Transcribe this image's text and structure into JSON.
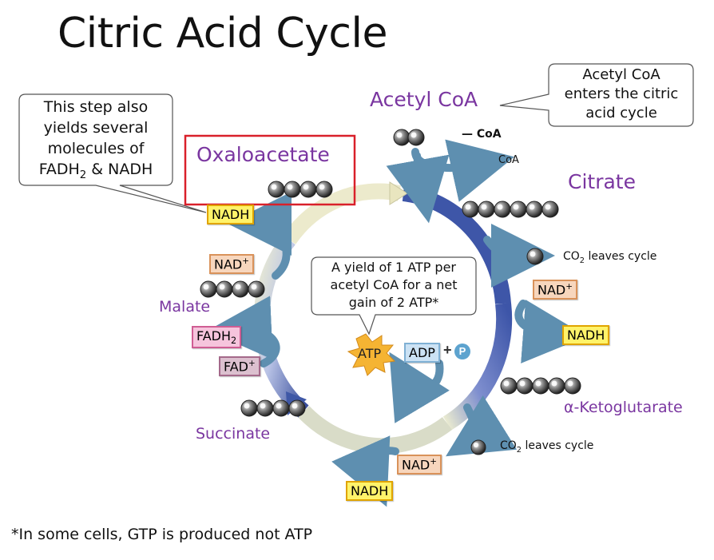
{
  "title": "Citric Acid Cycle",
  "labels": {
    "acetyl_coa": "Acetyl CoA",
    "oxaloacetate": "Oxaloacetate",
    "citrate": "Citrate",
    "malate": "Malate",
    "succinate": "Succinate",
    "alpha_ketoglutarate": "α-Ketoglutarate",
    "coa_small": "CoA",
    "coa_molecule": "— CoA"
  },
  "co2": {
    "prefix": "CO",
    "sub": "2",
    "suffix": " leaves cycle"
  },
  "callouts": {
    "acetyl": [
      "Acetyl CoA",
      "enters the citric",
      "acid cycle"
    ],
    "fadh_line1": "This step also",
    "fadh_line2": "yields several",
    "fadh_line3": "molecules of",
    "fadh_line4_a": "FADH",
    "fadh_line4_sub": "2",
    "fadh_line4_b": " & NADH",
    "atp": [
      "A yield of 1 ATP per",
      "acetyl CoA for a net",
      "gain of 2 ATP*"
    ]
  },
  "boxes": {
    "nadh": "NADH",
    "nad": "NAD",
    "nad_sup": "+",
    "fadh": "FADH",
    "fadh_sub": "2",
    "fad": "FAD",
    "fad_sup": "+",
    "adp": "ADP",
    "plus": "+",
    "p": "P",
    "atp": "ATP"
  },
  "footnote": "*In some cells, GTP is produced not ATP",
  "colors": {
    "label_purple": "#7a36a0",
    "highlight_red": "#d9202a",
    "nadh_fill": "#fff36a",
    "arrow_blue": "#5e8fb0"
  }
}
